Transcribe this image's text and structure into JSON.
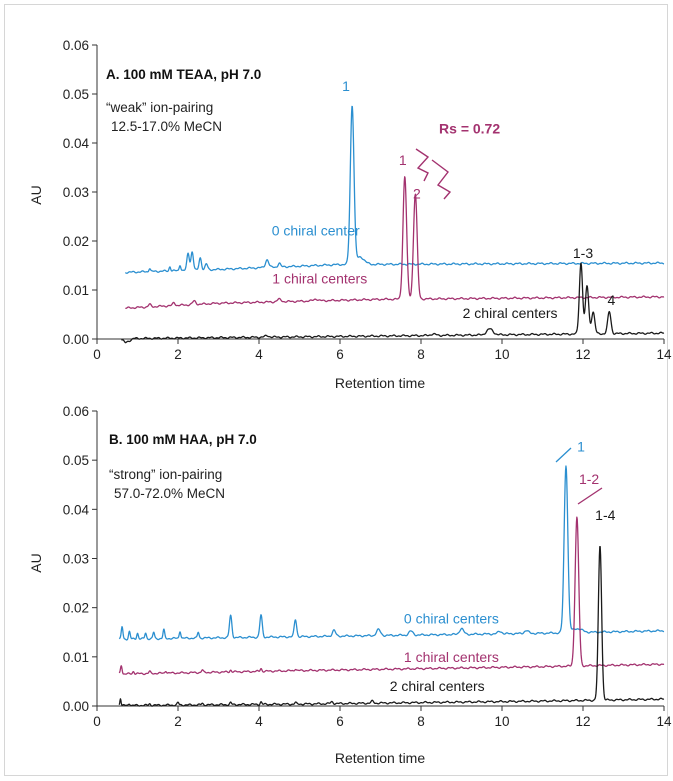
{
  "colors": {
    "blue": "#2b8fd0",
    "magenta": "#a3326f",
    "black": "#1a1a1a"
  },
  "chart_data": [
    {
      "type": "line",
      "panel_title": "A. 100 mM TEAA, pH 7.0",
      "notes": [
        "“weak” ion-pairing",
        "12.5-17.0% MeCN"
      ],
      "xlabel": "Retention time",
      "ylabel": "AU",
      "xlim": [
        0,
        14
      ],
      "ylim": [
        0,
        0.06
      ],
      "x_ticks": [
        "0",
        "2",
        "4",
        "6",
        "8",
        "10",
        "12",
        "14"
      ],
      "y_ticks": [
        "0.00",
        "0.01",
        "0.02",
        "0.03",
        "0.04",
        "0.05",
        "0.06"
      ],
      "series": [
        {
          "name": "0 chiral center",
          "color": "#2b8fd0",
          "baseline": [
            [
              0.7,
              0.0136
            ],
            [
              3.0,
              0.0142
            ],
            [
              6.0,
              0.0152
            ],
            [
              14.0,
              0.0155
            ]
          ],
          "peaks": [
            [
              1.3,
              0.0007,
              0.02
            ],
            [
              1.8,
              0.0009,
              0.02
            ],
            [
              2.05,
              0.0012,
              0.02
            ],
            [
              2.25,
              0.0035,
              0.03
            ],
            [
              2.35,
              0.0038,
              0.03
            ],
            [
              2.55,
              0.0025,
              0.03
            ],
            [
              2.7,
              0.0012,
              0.03
            ],
            [
              4.2,
              0.0016,
              0.04
            ],
            [
              4.5,
              0.0008,
              0.03
            ],
            [
              6.3,
              0.0323,
              0.045
            ],
            [
              6.5,
              0.0015,
              0.1
            ]
          ]
        },
        {
          "name": "1 chiral centers",
          "color": "#a3326f",
          "baseline": [
            [
              0.7,
              0.0063
            ],
            [
              3.0,
              0.0073
            ],
            [
              7.0,
              0.0081
            ],
            [
              14.0,
              0.0086
            ]
          ],
          "peaks": [
            [
              1.3,
              0.0005,
              0.03
            ],
            [
              1.9,
              0.0006,
              0.03
            ],
            [
              2.4,
              0.0007,
              0.04
            ],
            [
              4.5,
              0.0005,
              0.05
            ],
            [
              5.4,
              0.0004,
              0.05
            ],
            [
              7.6,
              0.025,
              0.045
            ],
            [
              7.86,
              0.0215,
              0.045
            ]
          ]
        },
        {
          "name": "2 chiral centers",
          "color": "#1a1a1a",
          "baseline": [
            [
              0.6,
              0.0
            ],
            [
              0.7,
              -0.0008
            ],
            [
              0.9,
              0.0001
            ],
            [
              14.0,
              0.0012
            ]
          ],
          "peaks": [
            [
              4.2,
              0.0003,
              0.05
            ],
            [
              8.3,
              0.0003,
              0.06
            ],
            [
              9.7,
              0.0012,
              0.08
            ],
            [
              11.95,
              0.0145,
              0.04
            ],
            [
              12.1,
              0.0098,
              0.04
            ],
            [
              12.25,
              0.0045,
              0.04
            ],
            [
              12.65,
              0.0045,
              0.04
            ]
          ]
        }
      ],
      "annotations": [
        {
          "text": "1",
          "color": "#2b8fd0",
          "x": 6.15,
          "y": 0.0506
        },
        {
          "text": "1",
          "color": "#a3326f",
          "x": 7.55,
          "y": 0.0355
        },
        {
          "text": "2",
          "color": "#a3326f",
          "x": 7.9,
          "y": 0.0287
        },
        {
          "text": "1-3",
          "color": "#1a1a1a",
          "x": 12.0,
          "y": 0.0165
        },
        {
          "text": "4",
          "color": "#1a1a1a",
          "x": 12.7,
          "y": 0.0069
        },
        {
          "text": "Rs = 0.72",
          "color": "#a3326f",
          "x": 9.2,
          "y": 0.0419
        }
      ],
      "series_labels": [
        {
          "text": "0 chiral center",
          "color": "#2b8fd0",
          "x": 5.4,
          "y": 0.0211
        },
        {
          "text": "1 chiral centers",
          "color": "#a3326f",
          "x": 5.5,
          "y": 0.0113
        },
        {
          "text": "2 chiral centers",
          "color": "#1a1a1a",
          "x": 10.2,
          "y": 0.0043
        }
      ]
    },
    {
      "type": "line",
      "panel_title": "B. 100 mM HAA, pH 7.0",
      "notes": [
        "“strong” ion-pairing",
        "57.0-72.0% MeCN"
      ],
      "xlabel": "Retention time",
      "ylabel": "AU",
      "xlim": [
        0,
        14
      ],
      "ylim": [
        0,
        0.06
      ],
      "x_ticks": [
        "0",
        "2",
        "4",
        "6",
        "8",
        "10",
        "12",
        "14"
      ],
      "y_ticks": [
        "0.00",
        "0.01",
        "0.02",
        "0.03",
        "0.04",
        "0.05",
        "0.06"
      ],
      "series": [
        {
          "name": "0 chiral centers",
          "color": "#2b8fd0",
          "baseline": [
            [
              0.55,
              0.0136
            ],
            [
              5.0,
              0.0141
            ],
            [
              11.0,
              0.0148
            ],
            [
              14.0,
              0.0153
            ]
          ],
          "peaks": [
            [
              0.62,
              0.0025,
              0.02
            ],
            [
              0.8,
              0.0015,
              0.02
            ],
            [
              1.0,
              0.0012,
              0.02
            ],
            [
              1.2,
              0.0012,
              0.02
            ],
            [
              1.4,
              0.0013,
              0.02
            ],
            [
              1.65,
              0.0018,
              0.02
            ],
            [
              2.05,
              0.0015,
              0.02
            ],
            [
              2.5,
              0.0012,
              0.02
            ],
            [
              3.3,
              0.0045,
              0.03
            ],
            [
              4.05,
              0.0045,
              0.03
            ],
            [
              4.9,
              0.0035,
              0.03
            ],
            [
              5.85,
              0.0012,
              0.04
            ],
            [
              6.95,
              0.0012,
              0.05
            ],
            [
              7.75,
              0.0008,
              0.05
            ],
            [
              9.0,
              0.0012,
              0.05
            ],
            [
              9.95,
              0.0005,
              0.05
            ],
            [
              10.6,
              0.0006,
              0.05
            ],
            [
              11.58,
              0.034,
              0.045
            ],
            [
              11.85,
              0.0008,
              0.12
            ]
          ]
        },
        {
          "name": "1 chiral centers",
          "color": "#a3326f",
          "baseline": [
            [
              0.55,
              0.0065
            ],
            [
              5.0,
              0.0072
            ],
            [
              11.0,
              0.008
            ],
            [
              14.0,
              0.0085
            ]
          ],
          "peaks": [
            [
              0.6,
              0.0018,
              0.02
            ],
            [
              0.9,
              0.0005,
              0.02
            ],
            [
              1.3,
              0.0004,
              0.02
            ],
            [
              1.7,
              0.0005,
              0.02
            ],
            [
              2.6,
              0.0005,
              0.02
            ],
            [
              3.3,
              0.0004,
              0.02
            ],
            [
              4.05,
              0.0006,
              0.02
            ],
            [
              4.9,
              0.0004,
              0.02
            ],
            [
              11.85,
              0.0302,
              0.045
            ]
          ]
        },
        {
          "name": "2 chiral centers",
          "color": "#1a1a1a",
          "baseline": [
            [
              0.55,
              0.0001
            ],
            [
              5.0,
              0.0004
            ],
            [
              11.0,
              0.001
            ],
            [
              14.0,
              0.0014
            ]
          ],
          "peaks": [
            [
              0.58,
              0.0015,
              0.015
            ],
            [
              0.8,
              0.0004,
              0.02
            ],
            [
              1.3,
              0.0003,
              0.02
            ],
            [
              2.0,
              0.0005,
              0.02
            ],
            [
              2.6,
              0.0003,
              0.02
            ],
            [
              3.3,
              0.0004,
              0.02
            ],
            [
              4.05,
              0.0005,
              0.02
            ],
            [
              4.9,
              0.0003,
              0.02
            ],
            [
              5.8,
              0.0004,
              0.03
            ],
            [
              6.8,
              0.0004,
              0.03
            ],
            [
              12.42,
              0.0315,
              0.04
            ]
          ]
        }
      ],
      "annotations": [
        {
          "text": "1",
          "color": "#2b8fd0",
          "x": 11.95,
          "y": 0.0518
        },
        {
          "text": "1-2",
          "color": "#a3326f",
          "x": 12.15,
          "y": 0.0452
        },
        {
          "text": "1-4",
          "color": "#1a1a1a",
          "x": 12.55,
          "y": 0.0378
        }
      ],
      "series_labels": [
        {
          "text": "0 chiral centers",
          "color": "#2b8fd0",
          "x": 8.75,
          "y": 0.0168
        },
        {
          "text": "1 chiral centers",
          "color": "#a3326f",
          "x": 8.75,
          "y": 0.0089
        },
        {
          "text": "2 chiral centers",
          "color": "#1a1a1a",
          "x": 8.4,
          "y": 0.0031
        }
      ]
    }
  ]
}
